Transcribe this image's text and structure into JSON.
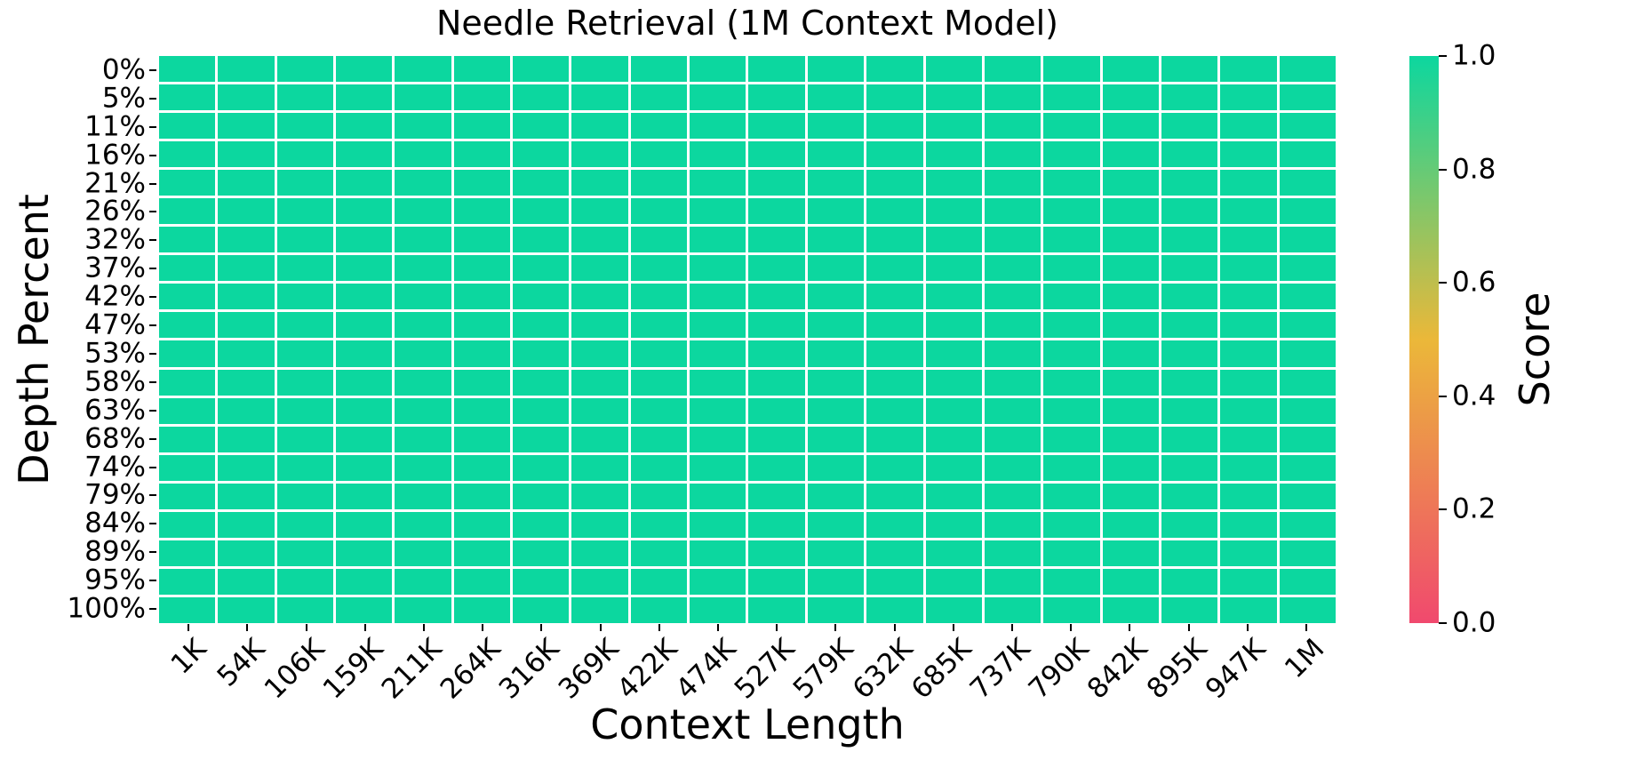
{
  "chart_data": {
    "type": "heatmap",
    "title": "Needle Retrieval (1M Context Model)",
    "xlabel": "Context Length",
    "ylabel": "Depth Percent",
    "x_categories": [
      "1K",
      "54K",
      "106K",
      "159K",
      "211K",
      "264K",
      "316K",
      "369K",
      "422K",
      "474K",
      "527K",
      "579K",
      "632K",
      "685K",
      "737K",
      "790K",
      "842K",
      "895K",
      "947K",
      "1M"
    ],
    "y_categories": [
      "0%",
      "5%",
      "11%",
      "16%",
      "21%",
      "26%",
      "32%",
      "37%",
      "42%",
      "47%",
      "53%",
      "58%",
      "63%",
      "68%",
      "74%",
      "79%",
      "84%",
      "89%",
      "95%",
      "100%"
    ],
    "values": [
      [
        1.0,
        1.0,
        1.0,
        1.0,
        1.0,
        1.0,
        1.0,
        1.0,
        1.0,
        1.0,
        1.0,
        1.0,
        1.0,
        1.0,
        1.0,
        1.0,
        1.0,
        1.0,
        1.0,
        1.0
      ],
      [
        1.0,
        1.0,
        1.0,
        1.0,
        1.0,
        1.0,
        1.0,
        1.0,
        1.0,
        1.0,
        1.0,
        1.0,
        1.0,
        1.0,
        1.0,
        1.0,
        1.0,
        1.0,
        1.0,
        1.0
      ],
      [
        1.0,
        1.0,
        1.0,
        1.0,
        1.0,
        1.0,
        1.0,
        1.0,
        1.0,
        1.0,
        1.0,
        1.0,
        1.0,
        1.0,
        1.0,
        1.0,
        1.0,
        1.0,
        1.0,
        1.0
      ],
      [
        1.0,
        1.0,
        1.0,
        1.0,
        1.0,
        1.0,
        1.0,
        1.0,
        1.0,
        1.0,
        1.0,
        1.0,
        1.0,
        1.0,
        1.0,
        1.0,
        1.0,
        1.0,
        1.0,
        1.0
      ],
      [
        1.0,
        1.0,
        1.0,
        1.0,
        1.0,
        1.0,
        1.0,
        1.0,
        1.0,
        1.0,
        1.0,
        1.0,
        1.0,
        1.0,
        1.0,
        1.0,
        1.0,
        1.0,
        1.0,
        1.0
      ],
      [
        1.0,
        1.0,
        1.0,
        1.0,
        1.0,
        1.0,
        1.0,
        1.0,
        1.0,
        1.0,
        1.0,
        1.0,
        1.0,
        1.0,
        1.0,
        1.0,
        1.0,
        1.0,
        1.0,
        1.0
      ],
      [
        1.0,
        1.0,
        1.0,
        1.0,
        1.0,
        1.0,
        1.0,
        1.0,
        1.0,
        1.0,
        1.0,
        1.0,
        1.0,
        1.0,
        1.0,
        1.0,
        1.0,
        1.0,
        1.0,
        1.0
      ],
      [
        1.0,
        1.0,
        1.0,
        1.0,
        1.0,
        1.0,
        1.0,
        1.0,
        1.0,
        1.0,
        1.0,
        1.0,
        1.0,
        1.0,
        1.0,
        1.0,
        1.0,
        1.0,
        1.0,
        1.0
      ],
      [
        1.0,
        1.0,
        1.0,
        1.0,
        1.0,
        1.0,
        1.0,
        1.0,
        1.0,
        1.0,
        1.0,
        1.0,
        1.0,
        1.0,
        1.0,
        1.0,
        1.0,
        1.0,
        1.0,
        1.0
      ],
      [
        1.0,
        1.0,
        1.0,
        1.0,
        1.0,
        1.0,
        1.0,
        1.0,
        1.0,
        1.0,
        1.0,
        1.0,
        1.0,
        1.0,
        1.0,
        1.0,
        1.0,
        1.0,
        1.0,
        1.0
      ],
      [
        1.0,
        1.0,
        1.0,
        1.0,
        1.0,
        1.0,
        1.0,
        1.0,
        1.0,
        1.0,
        1.0,
        1.0,
        1.0,
        1.0,
        1.0,
        1.0,
        1.0,
        1.0,
        1.0,
        1.0
      ],
      [
        1.0,
        1.0,
        1.0,
        1.0,
        1.0,
        1.0,
        1.0,
        1.0,
        1.0,
        1.0,
        1.0,
        1.0,
        1.0,
        1.0,
        1.0,
        1.0,
        1.0,
        1.0,
        1.0,
        1.0
      ],
      [
        1.0,
        1.0,
        1.0,
        1.0,
        1.0,
        1.0,
        1.0,
        1.0,
        1.0,
        1.0,
        1.0,
        1.0,
        1.0,
        1.0,
        1.0,
        1.0,
        1.0,
        1.0,
        1.0,
        1.0
      ],
      [
        1.0,
        1.0,
        1.0,
        1.0,
        1.0,
        1.0,
        1.0,
        1.0,
        1.0,
        1.0,
        1.0,
        1.0,
        1.0,
        1.0,
        1.0,
        1.0,
        1.0,
        1.0,
        1.0,
        1.0
      ],
      [
        1.0,
        1.0,
        1.0,
        1.0,
        1.0,
        1.0,
        1.0,
        1.0,
        1.0,
        1.0,
        1.0,
        1.0,
        1.0,
        1.0,
        1.0,
        1.0,
        1.0,
        1.0,
        1.0,
        1.0
      ],
      [
        1.0,
        1.0,
        1.0,
        1.0,
        1.0,
        1.0,
        1.0,
        1.0,
        1.0,
        1.0,
        1.0,
        1.0,
        1.0,
        1.0,
        1.0,
        1.0,
        1.0,
        1.0,
        1.0,
        1.0
      ],
      [
        1.0,
        1.0,
        1.0,
        1.0,
        1.0,
        1.0,
        1.0,
        1.0,
        1.0,
        1.0,
        1.0,
        1.0,
        1.0,
        1.0,
        1.0,
        1.0,
        1.0,
        1.0,
        1.0,
        1.0
      ],
      [
        1.0,
        1.0,
        1.0,
        1.0,
        1.0,
        1.0,
        1.0,
        1.0,
        1.0,
        1.0,
        1.0,
        1.0,
        1.0,
        1.0,
        1.0,
        1.0,
        1.0,
        1.0,
        1.0,
        1.0
      ],
      [
        1.0,
        1.0,
        1.0,
        1.0,
        1.0,
        1.0,
        1.0,
        1.0,
        1.0,
        1.0,
        1.0,
        1.0,
        1.0,
        1.0,
        1.0,
        1.0,
        1.0,
        1.0,
        1.0,
        1.0
      ],
      [
        1.0,
        1.0,
        1.0,
        1.0,
        1.0,
        1.0,
        1.0,
        1.0,
        1.0,
        1.0,
        1.0,
        1.0,
        1.0,
        1.0,
        1.0,
        1.0,
        1.0,
        1.0,
        1.0,
        1.0
      ]
    ],
    "grid_on": true,
    "grid_line_color": "#ffffff",
    "colorbar": {
      "label": "Score",
      "ticks": [
        "1.0",
        "0.8",
        "0.6",
        "0.4",
        "0.2",
        "0.0"
      ],
      "min": 0.0,
      "max": 1.0,
      "legend_position": "right",
      "colormap_stops": [
        {
          "pos": 0.0,
          "color": "#F0496E"
        },
        {
          "pos": 0.5,
          "color": "#EBB839"
        },
        {
          "pos": 1.0,
          "color": "#0CD79F"
        }
      ]
    }
  }
}
